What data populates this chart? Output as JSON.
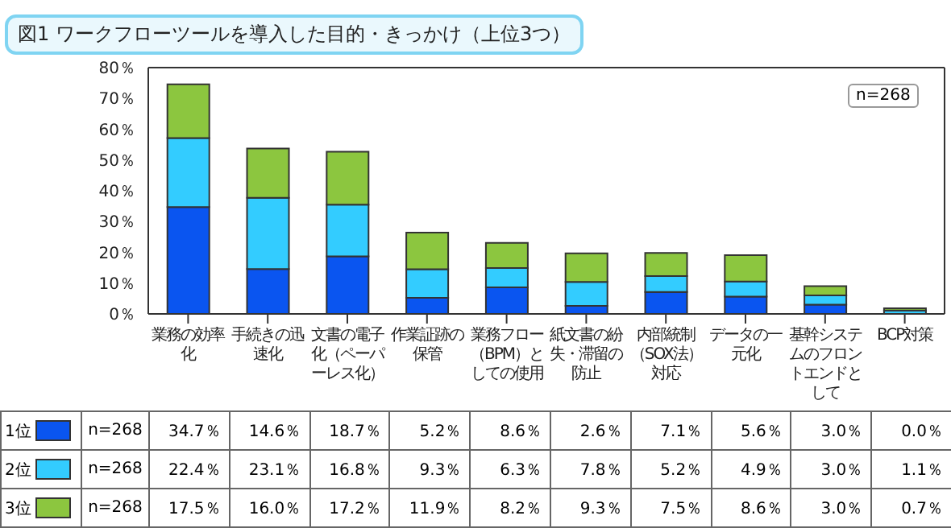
{
  "chart_data": {
    "type": "bar",
    "stacked": true,
    "title": "図1 ワークフローツールを導入した目的・きっかけ（上位3つ）",
    "annotations": [
      "n=268"
    ],
    "categories": [
      "業務の効率化",
      "手続きの迅速化",
      "文書の電子化（ペーパーレス化）",
      "作業証跡の保管",
      "業務フロー（BPM）としての使用",
      "紙文書の紛失・滞留の防止",
      "内部統制（SOX法）対応",
      "データの一元化",
      "基幹システムのフロントエンドとして",
      "BCP対策"
    ],
    "series": [
      {
        "name": "1位",
        "color": "#0a55f0",
        "values": [
          34.7,
          14.6,
          18.7,
          5.2,
          8.6,
          2.6,
          7.1,
          5.6,
          3.0,
          0.0
        ],
        "value_labels": [
          "34.7％",
          "14.6％",
          "18.7％",
          "5.2％",
          "8.6％",
          "2.6％",
          "7.1％",
          "5.6％",
          "3.0％",
          "0.0％"
        ]
      },
      {
        "name": "2位",
        "color": "#33ccff",
        "values": [
          22.4,
          23.1,
          16.8,
          9.3,
          6.3,
          7.8,
          5.2,
          4.9,
          3.0,
          1.1
        ],
        "value_labels": [
          "22.4％",
          "23.1％",
          "16.8％",
          "9.3％",
          "6.3％",
          "7.8％",
          "5.2％",
          "4.9％",
          "3.0％",
          "1.1％"
        ]
      },
      {
        "name": "3位",
        "color": "#8cc63f",
        "values": [
          17.5,
          16.0,
          17.2,
          11.9,
          8.2,
          9.3,
          7.5,
          8.6,
          3.0,
          0.7
        ],
        "value_labels": [
          "17.5％",
          "16.0％",
          "17.2％",
          "11.9％",
          "8.2％",
          "9.3％",
          "7.5％",
          "8.6％",
          "3.0％",
          "0.7％"
        ]
      }
    ],
    "ylim": [
      0,
      80
    ],
    "yticks": [
      {
        "value": 0,
        "label": "0％"
      },
      {
        "value": 10,
        "label": "10％"
      },
      {
        "value": 20,
        "label": "20％"
      },
      {
        "value": 30,
        "label": "30％"
      },
      {
        "value": 40,
        "label": "40％"
      },
      {
        "value": 50,
        "label": "50％"
      },
      {
        "value": 60,
        "label": "60％"
      },
      {
        "value": 70,
        "label": "70％"
      },
      {
        "value": 80,
        "label": "80％"
      }
    ],
    "grid": false,
    "legend": "bottom"
  }
}
